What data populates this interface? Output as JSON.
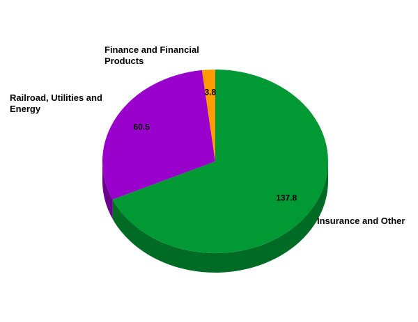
{
  "chart_data": {
    "type": "pie",
    "categories": [
      "Insurance and Other",
      "Railroad, Utilities and Energy",
      "Finance and Financial Products"
    ],
    "values": [
      137.8,
      60.5,
      3.8
    ],
    "colors": [
      "#009933",
      "#9900cc",
      "#ff9900"
    ],
    "side_colors": [
      "#006b24",
      "#6b008f",
      "#b36b00"
    ]
  }
}
